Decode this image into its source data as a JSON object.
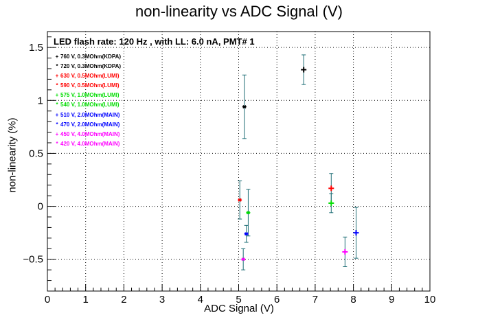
{
  "chart_data": {
    "type": "scatter",
    "title": "non-linearity vs ADC Signal (V)",
    "xlabel": "ADC Signal (V)",
    "ylabel": "non-linearity (%)",
    "xlim": [
      0,
      10
    ],
    "ylim": [
      -0.8,
      1.65
    ],
    "x_ticks": [
      "0",
      "1",
      "2",
      "3",
      "4",
      "5",
      "6",
      "7",
      "8",
      "9",
      "10"
    ],
    "y_ticks": [
      {
        "value": -0.5,
        "label": "−0.5"
      },
      {
        "value": 0,
        "label": "0"
      },
      {
        "value": 0.5,
        "label": "0.5"
      },
      {
        "value": 1,
        "label": "1"
      },
      {
        "value": 1.5,
        "label": "1.5"
      }
    ],
    "grid": true,
    "annotation": "LED flash rate: 120 Hz , with LL: 6.0 nA, PMT# 1",
    "legend_position": "top-left",
    "series": [
      {
        "name": "760 V, 0.3MOhm(KDPA)",
        "color": "#000000",
        "legend_marker": "+",
        "points": [
          {
            "x": 6.7,
            "y": 1.29,
            "yerr": 0.14,
            "marker": "+"
          }
        ]
      },
      {
        "name": "720 V, 0.3MOhm(KDPA)",
        "color": "#000000",
        "legend_marker": "*",
        "points": [
          {
            "x": 5.15,
            "y": 0.94,
            "yerr": 0.3,
            "marker": "*"
          }
        ]
      },
      {
        "name": "630 V, 0.5MOhm(LUMI)",
        "color": "#ff0000",
        "legend_marker": "+",
        "points": [
          {
            "x": 7.42,
            "y": 0.17,
            "yerr": 0.14,
            "marker": "+"
          }
        ]
      },
      {
        "name": "590 V, 0.5MOhm(LUMI)",
        "color": "#ff0000",
        "legend_marker": "*",
        "points": [
          {
            "x": 5.03,
            "y": 0.06,
            "yerr": 0.18,
            "marker": "*"
          }
        ]
      },
      {
        "name": "575 V, 1.0MOhm(LUMI)",
        "color": "#00dd00",
        "legend_marker": "+",
        "points": [
          {
            "x": 7.42,
            "y": 0.03,
            "yerr": 0.09,
            "marker": "+"
          }
        ]
      },
      {
        "name": "540 V, 1.0MOhm(LUMI)",
        "color": "#00dd00",
        "legend_marker": "*",
        "points": [
          {
            "x": 5.25,
            "y": -0.06,
            "yerr": 0.22,
            "marker": "*"
          }
        ]
      },
      {
        "name": "510 V, 2.0MOhm(MAIN)",
        "color": "#0000ff",
        "legend_marker": "+",
        "points": [
          {
            "x": 8.07,
            "y": -0.25,
            "yerr": 0.24,
            "marker": "+"
          }
        ]
      },
      {
        "name": "470 V, 2.0MOhm(MAIN)",
        "color": "#0000ff",
        "legend_marker": "*",
        "points": [
          {
            "x": 5.2,
            "y": -0.26,
            "yerr": 0.08,
            "marker": "*"
          }
        ]
      },
      {
        "name": "450 V, 4.0MOhm(MAIN)",
        "color": "#ff00ff",
        "legend_marker": "+",
        "points": [
          {
            "x": 7.78,
            "y": -0.43,
            "yerr": 0.14,
            "marker": "+"
          }
        ]
      },
      {
        "name": "420 V, 4.0MOhm(MAIN)",
        "color": "#ff00ff",
        "legend_marker": "*",
        "points": [
          {
            "x": 5.12,
            "y": -0.5,
            "yerr": 0.1,
            "marker": "*"
          }
        ]
      }
    ],
    "errorbar_color": "#1a6b73"
  }
}
